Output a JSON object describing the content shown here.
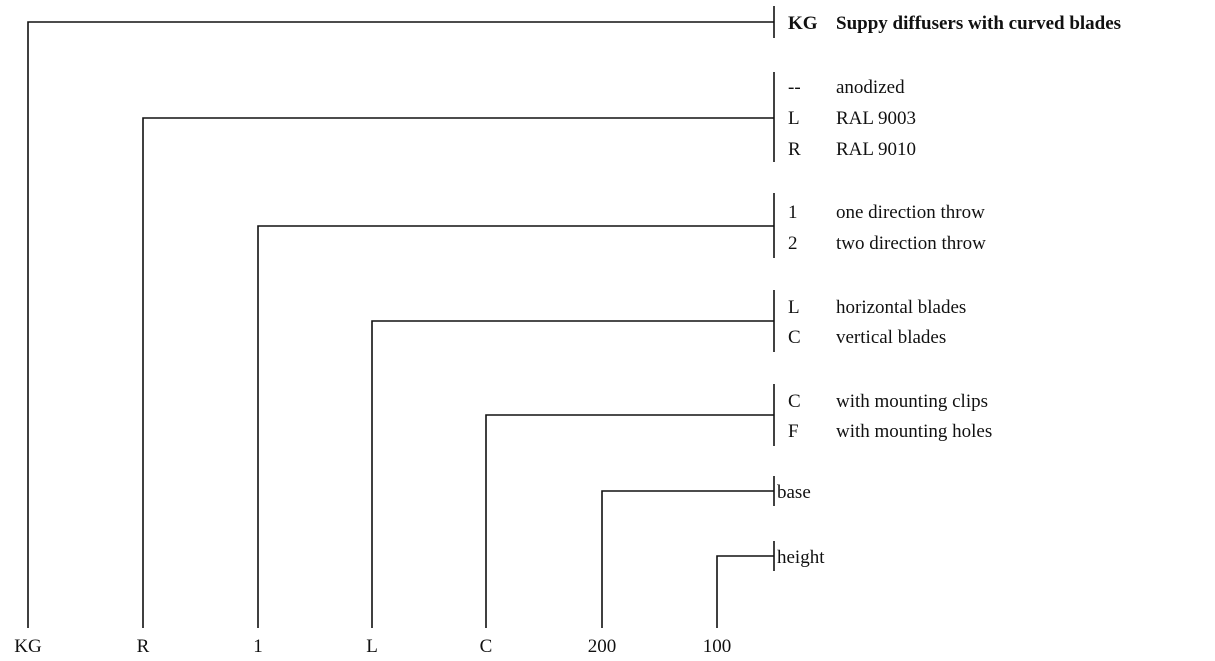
{
  "product_code": [
    {
      "code": "KG"
    },
    {
      "code": "R"
    },
    {
      "code": "1"
    },
    {
      "code": "L"
    },
    {
      "code": "C"
    },
    {
      "code": "200"
    },
    {
      "code": "100"
    }
  ],
  "title": {
    "code": "KG",
    "label": "Suppy diffusers with curved blades"
  },
  "groups": [
    {
      "options": [
        {
          "code": "--",
          "label": "anodized"
        },
        {
          "code": "L",
          "label": "RAL 9003"
        },
        {
          "code": "R",
          "label": "RAL 9010"
        }
      ]
    },
    {
      "options": [
        {
          "code": "1",
          "label": "one direction throw"
        },
        {
          "code": "2",
          "label": "two direction throw"
        }
      ]
    },
    {
      "options": [
        {
          "code": "L",
          "label": "horizontal blades"
        },
        {
          "code": "C",
          "label": "vertical blades"
        }
      ]
    },
    {
      "options": [
        {
          "code": "C",
          "label": "with mounting clips"
        },
        {
          "code": "F",
          "label": "with mounting holes"
        }
      ]
    }
  ],
  "dimensions": [
    {
      "label": "base"
    },
    {
      "label": "height"
    }
  ]
}
